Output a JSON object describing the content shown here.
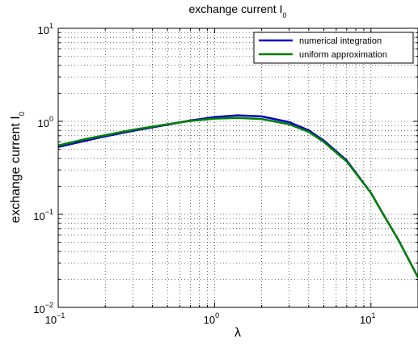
{
  "chart_data": {
    "type": "line",
    "title": "exchange current I",
    "title_subscript": "0",
    "xlabel": "λ",
    "ylabel": "exchange current I",
    "ylabel_subscript": "0",
    "xscale": "log",
    "yscale": "log",
    "xlim": [
      0.1,
      20
    ],
    "ylim": [
      0.01,
      10
    ],
    "grid": true,
    "legend_position": "top-right",
    "x_ticks": [
      {
        "base": "10",
        "exp": "−1",
        "value": 0.1
      },
      {
        "base": "10",
        "exp": "0",
        "value": 1
      },
      {
        "base": "10",
        "exp": "1",
        "value": 10
      }
    ],
    "y_ticks": [
      {
        "base": "10",
        "exp": "−2",
        "value": 0.01
      },
      {
        "base": "10",
        "exp": "−1",
        "value": 0.1
      },
      {
        "base": "10",
        "exp": "0",
        "value": 1
      },
      {
        "base": "10",
        "exp": "1",
        "value": 10
      }
    ],
    "series": [
      {
        "name": "numerical integration",
        "color": "#0000cc",
        "x": [
          0.1,
          0.15,
          0.2,
          0.3,
          0.5,
          0.7,
          1.0,
          1.4,
          2.0,
          3.0,
          4.0,
          5.0,
          7.0,
          10.0,
          12.0,
          15.0,
          20.0
        ],
        "y": [
          0.53,
          0.62,
          0.69,
          0.79,
          0.92,
          1.02,
          1.11,
          1.16,
          1.13,
          0.98,
          0.8,
          0.62,
          0.38,
          0.17,
          0.1,
          0.053,
          0.021
        ]
      },
      {
        "name": "uniform approximation",
        "color": "#008000",
        "x": [
          0.1,
          0.15,
          0.2,
          0.3,
          0.5,
          0.7,
          1.0,
          1.4,
          2.0,
          3.0,
          4.0,
          5.0,
          7.0,
          10.0,
          12.0,
          15.0,
          20.0
        ],
        "y": [
          0.55,
          0.645,
          0.71,
          0.81,
          0.93,
          1.01,
          1.07,
          1.09,
          1.06,
          0.93,
          0.77,
          0.6,
          0.37,
          0.17,
          0.1,
          0.053,
          0.021
        ]
      }
    ]
  }
}
